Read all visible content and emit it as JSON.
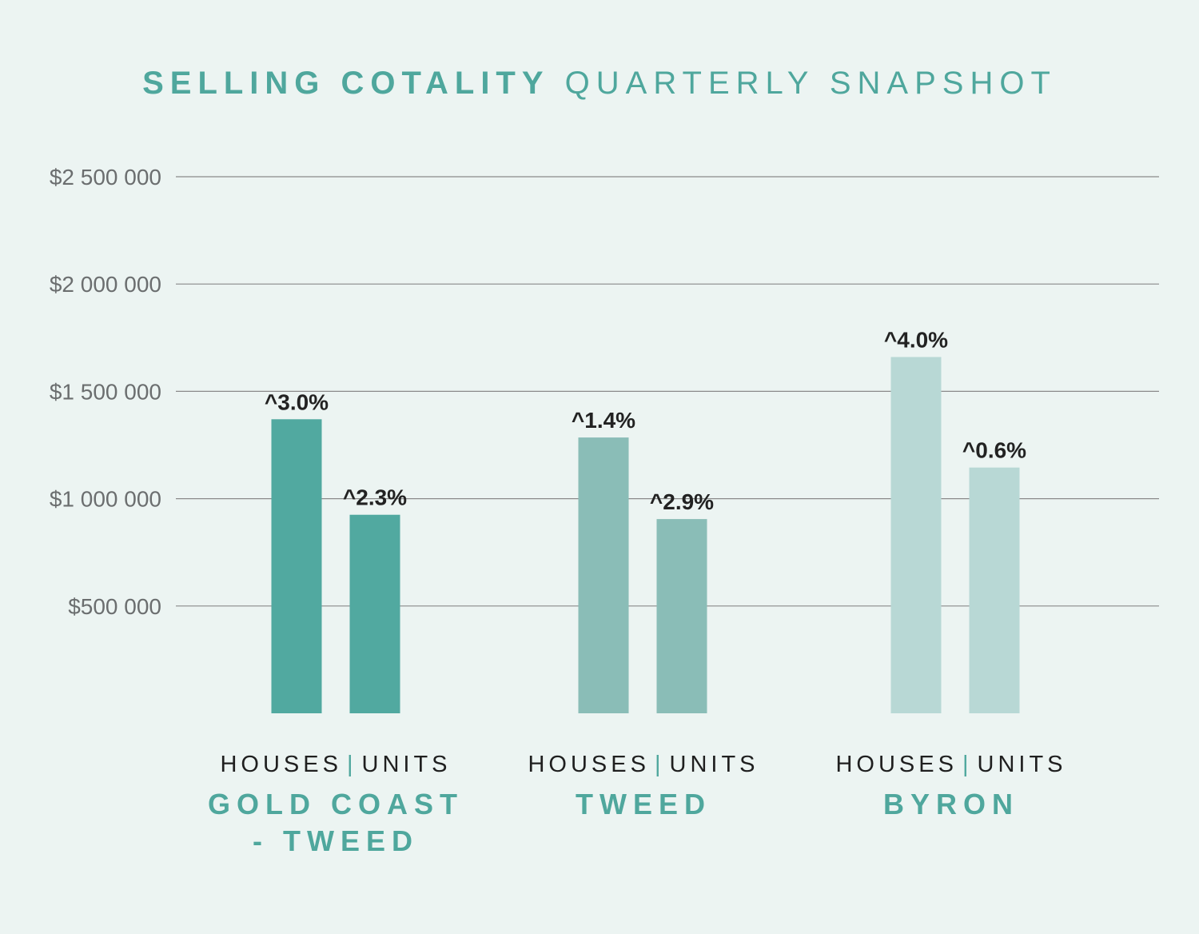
{
  "title": {
    "bold": "SELLING COTALITY",
    "light": "QUARTERLY SNAPSHOT"
  },
  "chart_data": {
    "type": "bar",
    "title": "SELLING COTALITY QUARTERLY SNAPSHOT",
    "ylim": [
      0,
      2500000
    ],
    "yticks": [
      500000,
      1000000,
      1500000,
      2000000,
      2500000
    ],
    "ytick_labels": [
      "$500 000",
      "$1 000 000",
      "$1 500 000",
      "$2 000 000",
      "$2 500 000"
    ],
    "grid": true,
    "groups": [
      {
        "name": "GOLD COAST - TWEED",
        "name_lines": [
          "GOLD COAST",
          "- TWEED"
        ],
        "sub": {
          "houses": "HOUSES",
          "sep": "|",
          "units": "UNITS"
        },
        "color": "#51a9a0",
        "bars": [
          {
            "category": "HOUSES",
            "value": 1370000,
            "label": "^3.0%"
          },
          {
            "category": "UNITS",
            "value": 925000,
            "label": "^2.3%"
          }
        ]
      },
      {
        "name": "TWEED",
        "name_lines": [
          "TWEED"
        ],
        "sub": {
          "houses": "HOUSES",
          "sep": "|",
          "units": "UNITS"
        },
        "color": "#8abdb7",
        "bars": [
          {
            "category": "HOUSES",
            "value": 1285000,
            "label": "^1.4%"
          },
          {
            "category": "UNITS",
            "value": 905000,
            "label": "^2.9%"
          }
        ]
      },
      {
        "name": "BYRON",
        "name_lines": [
          "BYRON"
        ],
        "sub": {
          "houses": "HOUSES",
          "sep": "|",
          "units": "UNITS"
        },
        "color": "#b8d8d5",
        "bars": [
          {
            "category": "HOUSES",
            "value": 1660000,
            "label": "^4.0%"
          },
          {
            "category": "UNITS",
            "value": 1145000,
            "label": "^0.6%"
          }
        ]
      }
    ]
  }
}
